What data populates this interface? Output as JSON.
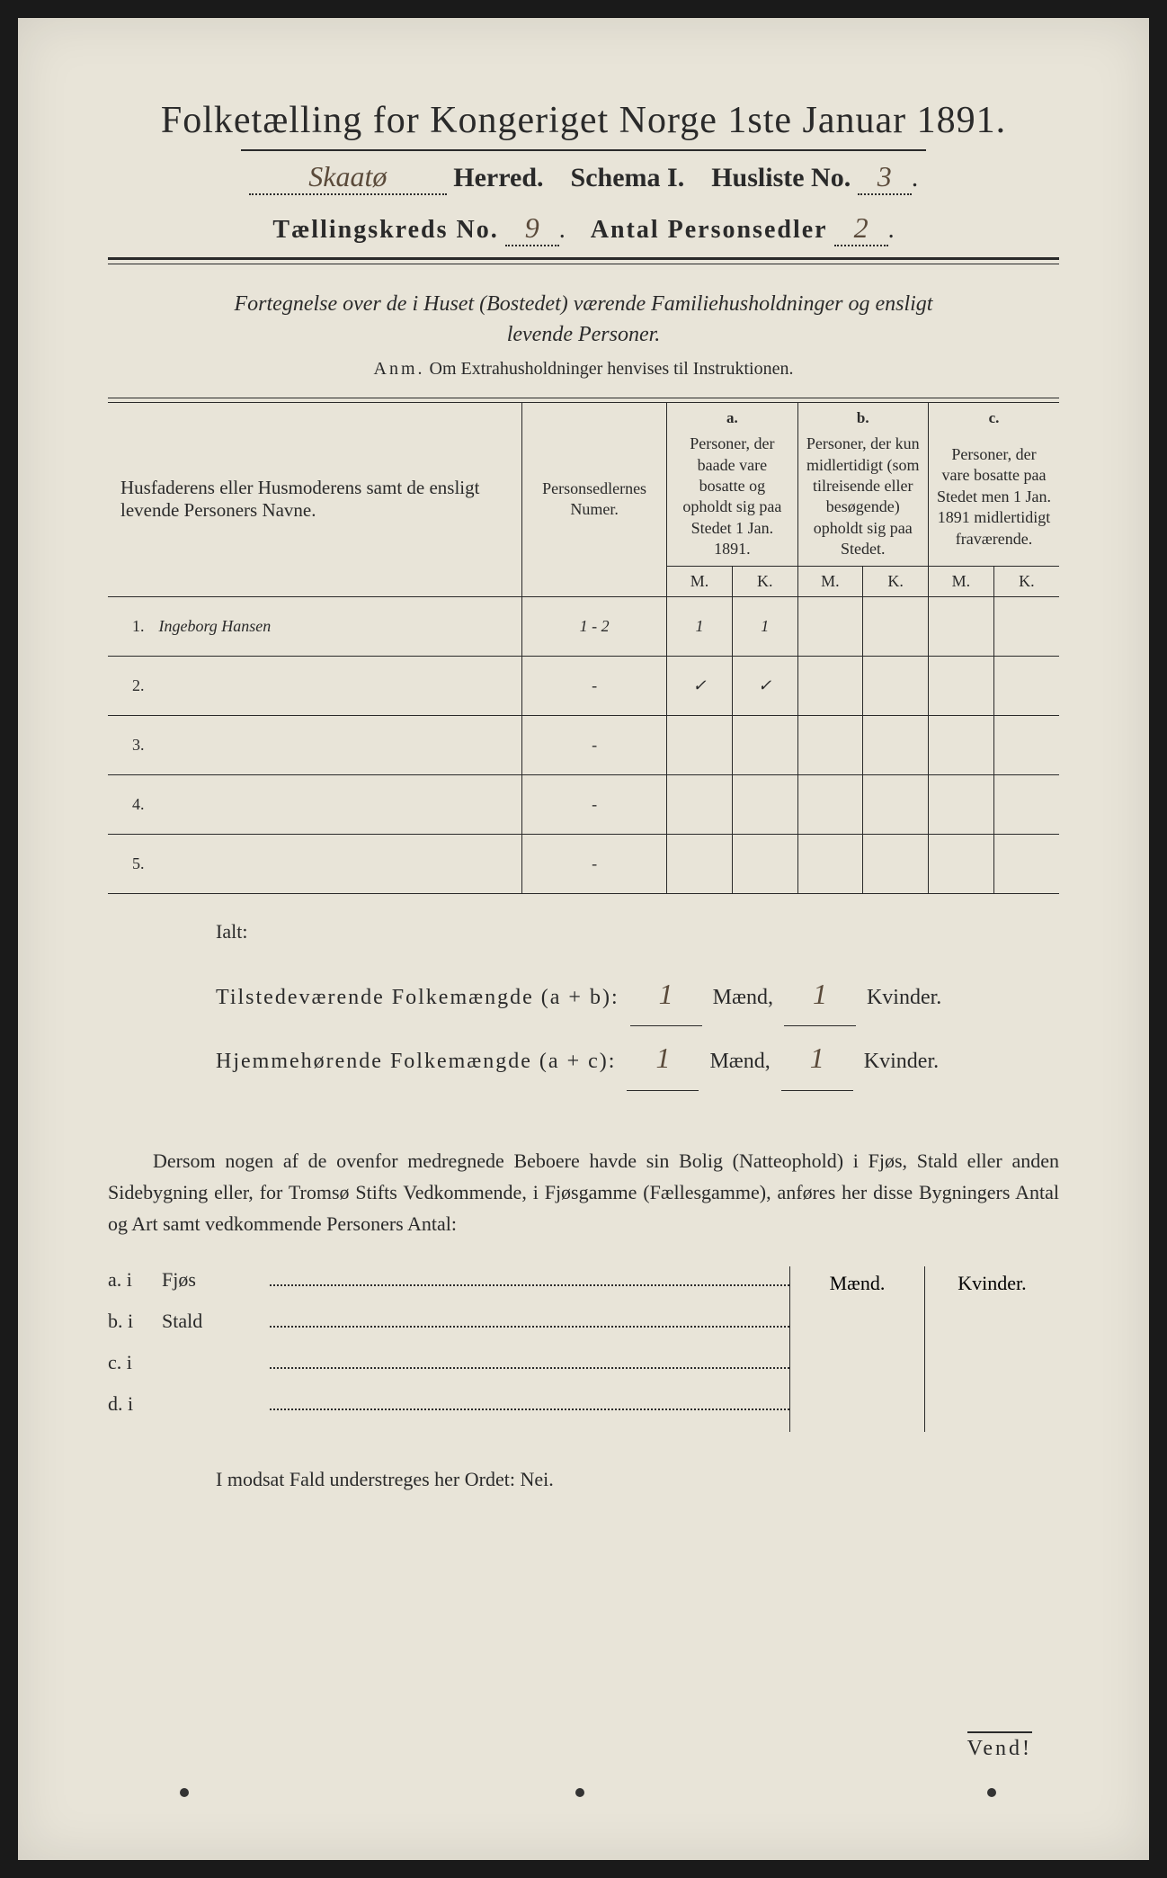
{
  "header": {
    "title": "Folketælling for Kongeriget Norge 1ste Januar 1891.",
    "herred_value": "Skaatø",
    "herred_label": "Herred.",
    "schema_label": "Schema I.",
    "husliste_label": "Husliste No.",
    "husliste_value": "3",
    "kreds_label": "Tællingskreds No.",
    "kreds_value": "9",
    "antal_label": "Antal Personsedler",
    "antal_value": "2"
  },
  "intro": {
    "line1": "Fortegnelse over de i Huset (Bostedet) værende Familiehusholdninger og ensligt",
    "line2": "levende Personer.",
    "anm_label": "Anm.",
    "anm_text": "Om Extrahusholdninger henvises til Instruktionen."
  },
  "table": {
    "col1_header": "Husfaderens eller Husmoderens samt de ensligt levende Personers Navne.",
    "col2_header": "Personsedlernes Numer.",
    "col_a_letter": "a.",
    "col_a_text": "Personer, der baade vare bosatte og opholdt sig paa Stedet 1 Jan. 1891.",
    "col_b_letter": "b.",
    "col_b_text": "Personer, der kun midlertidigt (som tilreisende eller besøgende) opholdt sig paa Stedet.",
    "col_c_letter": "c.",
    "col_c_text": "Personer, der vare bosatte paa Stedet men 1 Jan. 1891 midlertidigt fraværende.",
    "m_label": "M.",
    "k_label": "K.",
    "rows": [
      {
        "num": "1.",
        "name": "Ingeborg Hansen",
        "pnum": "1 - 2",
        "a_m": "1",
        "a_k": "1",
        "b_m": "",
        "b_k": "",
        "c_m": "",
        "c_k": ""
      },
      {
        "num": "2.",
        "name": "",
        "pnum": "-",
        "a_m": "✓",
        "a_k": "✓",
        "b_m": "",
        "b_k": "",
        "c_m": "",
        "c_k": ""
      },
      {
        "num": "3.",
        "name": "",
        "pnum": "-",
        "a_m": "",
        "a_k": "",
        "b_m": "",
        "b_k": "",
        "c_m": "",
        "c_k": ""
      },
      {
        "num": "4.",
        "name": "",
        "pnum": "-",
        "a_m": "",
        "a_k": "",
        "b_m": "",
        "b_k": "",
        "c_m": "",
        "c_k": ""
      },
      {
        "num": "5.",
        "name": "",
        "pnum": "-",
        "a_m": "",
        "a_k": "",
        "b_m": "",
        "b_k": "",
        "c_m": "",
        "c_k": ""
      }
    ]
  },
  "totals": {
    "ialt": "Ialt:",
    "line1_label": "Tilstedeværende Folkemængde (a + b):",
    "line2_label": "Hjemmehørende Folkemængde (a + c):",
    "maend": "Mænd,",
    "kvinder": "Kvinder.",
    "v1_m": "1",
    "v1_k": "1",
    "v2_m": "1",
    "v2_k": "1"
  },
  "dersom": {
    "text": "Dersom nogen af de ovenfor medregnede Beboere havde sin Bolig (Natteophold) i Fjøs, Stald eller anden Sidebygning eller, for Tromsø Stifts Vedkommende, i Fjøsgamme (Fællesgamme), anføres her disse Bygningers Antal og Art samt vedkommende Personers Antal:"
  },
  "bolig": {
    "maend": "Mænd.",
    "kvinder": "Kvinder.",
    "rows": [
      {
        "label": "a. i",
        "type": "Fjøs"
      },
      {
        "label": "b. i",
        "type": "Stald"
      },
      {
        "label": "c. i",
        "type": ""
      },
      {
        "label": "d. i",
        "type": ""
      }
    ]
  },
  "modsat": "I modsat Fald understreges her Ordet: Nei.",
  "vend": "Vend!",
  "colors": {
    "paper": "#e8e4d8",
    "ink": "#2a2a2a",
    "handwriting": "#5a4a3a"
  }
}
